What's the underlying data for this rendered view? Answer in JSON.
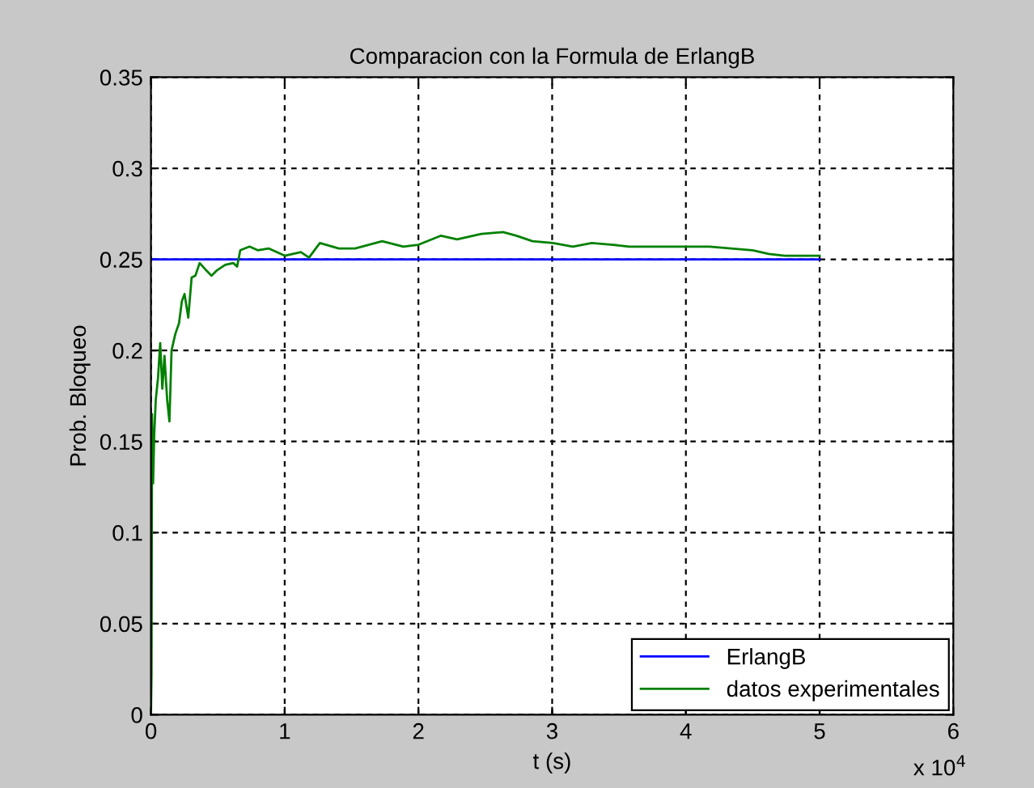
{
  "chart_data": {
    "type": "line",
    "title": "Comparacion con la Formula de ErlangB",
    "xlabel": "t (s)",
    "ylabel": "Prob. Bloqueo",
    "annotations": [
      "x 10$^{4}$"
    ],
    "xlim": [
      0,
      6
    ],
    "xticks": [
      0,
      1,
      2,
      3,
      4,
      5,
      6
    ],
    "ylim": [
      0,
      0.35
    ],
    "yticks": [
      0,
      0.05,
      0.1,
      0.15,
      0.2,
      0.25,
      0.3,
      0.35
    ],
    "grid": true,
    "legend": "bottom right",
    "line_style": "solid",
    "marker": "none",
    "series": [
      {
        "name": "ErlangB",
        "color": "#0000ff",
        "x": [
          0,
          5
        ],
        "values": [
          0.25,
          0.25
        ]
      },
      {
        "name": "datos experimentales",
        "color": "#008000",
        "x": [
          0,
          0.004,
          0.008,
          0.016,
          0.024,
          0.036,
          0.053,
          0.069,
          0.085,
          0.101,
          0.121,
          0.138,
          0.154,
          0.182,
          0.21,
          0.231,
          0.251,
          0.279,
          0.304,
          0.332,
          0.364,
          0.413,
          0.453,
          0.494,
          0.555,
          0.615,
          0.644,
          0.668,
          0.737,
          0.798,
          0.879,
          1,
          1.121,
          1.182,
          1.263,
          1.405,
          1.526,
          1.729,
          1.888,
          2,
          2.169,
          2.289,
          2.47,
          2.633,
          2.733,
          2.853,
          3.006,
          3.155,
          3.296,
          3.456,
          3.577,
          3.778,
          4,
          4.178,
          4.338,
          4.499,
          4.62,
          4.74,
          4.82,
          5
        ],
        "values": [
          0,
          0.022,
          0.165,
          0.127,
          0.153,
          0.173,
          0.185,
          0.204,
          0.179,
          0.197,
          0.173,
          0.161,
          0.2,
          0.209,
          0.215,
          0.227,
          0.231,
          0.218,
          0.24,
          0.241,
          0.248,
          0.244,
          0.241,
          0.244,
          0.247,
          0.248,
          0.246,
          0.255,
          0.257,
          0.255,
          0.256,
          0.252,
          0.254,
          0.251,
          0.259,
          0.256,
          0.256,
          0.26,
          0.257,
          0.258,
          0.263,
          0.261,
          0.264,
          0.265,
          0.263,
          0.26,
          0.259,
          0.257,
          0.259,
          0.258,
          0.257,
          0.257,
          0.257,
          0.257,
          0.256,
          0.255,
          0.253,
          0.252,
          0.252,
          0.252
        ]
      }
    ]
  }
}
